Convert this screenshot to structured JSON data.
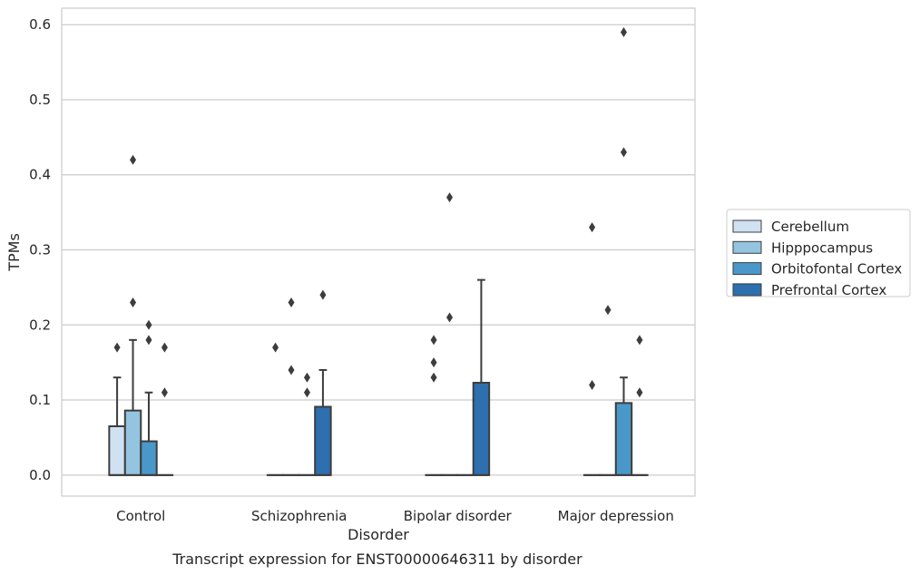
{
  "chart_data": {
    "type": "box",
    "caption": "Transcript expression for ENST00000646311 by disorder",
    "xlabel": "Disorder",
    "ylabel": "TPMs",
    "ylim": [
      -0.028,
      0.622
    ],
    "yticks": [
      0.0,
      0.1,
      0.2,
      0.3,
      0.4,
      0.5,
      0.6
    ],
    "ytick_labels": [
      "0.0",
      "0.1",
      "0.2",
      "0.3",
      "0.4",
      "0.5",
      "0.6"
    ],
    "categories": [
      "Control",
      "Schizophrenia",
      "Bipolar disorder",
      "Major depression"
    ],
    "grid": "horizontal",
    "legend": {
      "position": "right",
      "entries": [
        "Cerebellum",
        "Hipppocampus",
        "Orbitofontal Cortex",
        "Prefrontal Cortex"
      ]
    },
    "colors": [
      "#d0e1f2",
      "#94c4df",
      "#4a98c9",
      "#2d6faf"
    ],
    "series": [
      {
        "name": "Cerebellum",
        "boxes": [
          {
            "q1": 0.0,
            "q3": 0.065,
            "median": 0.0,
            "whisker_low": 0.0,
            "whisker_high": 0.13,
            "outliers": [
              0.17
            ]
          },
          {
            "q1": 0.0,
            "q3": 0.0,
            "median": 0.0,
            "whisker_low": 0.0,
            "whisker_high": 0.0,
            "outliers": [
              0.17
            ]
          },
          {
            "q1": 0.0,
            "q3": 0.0,
            "median": 0.0,
            "whisker_low": 0.0,
            "whisker_high": 0.0,
            "outliers": [
              0.18,
              0.15,
              0.13
            ]
          },
          {
            "q1": 0.0,
            "q3": 0.0,
            "median": 0.0,
            "whisker_low": 0.0,
            "whisker_high": 0.0,
            "outliers": [
              0.33,
              0.12
            ]
          }
        ]
      },
      {
        "name": "Hipppocampus",
        "boxes": [
          {
            "q1": 0.0,
            "q3": 0.086,
            "median": 0.0,
            "whisker_low": 0.0,
            "whisker_high": 0.18,
            "outliers": [
              0.42,
              0.23
            ]
          },
          {
            "q1": 0.0,
            "q3": 0.0,
            "median": 0.0,
            "whisker_low": 0.0,
            "whisker_high": 0.0,
            "outliers": [
              0.23,
              0.14
            ]
          },
          {
            "q1": 0.0,
            "q3": 0.0,
            "median": 0.0,
            "whisker_low": 0.0,
            "whisker_high": 0.0,
            "outliers": [
              0.37,
              0.21
            ]
          },
          {
            "q1": 0.0,
            "q3": 0.0,
            "median": 0.0,
            "whisker_low": 0.0,
            "whisker_high": 0.0,
            "outliers": [
              0.22
            ]
          }
        ]
      },
      {
        "name": "Orbitofontal Cortex",
        "boxes": [
          {
            "q1": 0.0,
            "q3": 0.045,
            "median": 0.0,
            "whisker_low": 0.0,
            "whisker_high": 0.11,
            "outliers": [
              0.2,
              0.18
            ]
          },
          {
            "q1": 0.0,
            "q3": 0.0,
            "median": 0.0,
            "whisker_low": 0.0,
            "whisker_high": 0.0,
            "outliers": [
              0.13,
              0.11
            ]
          },
          {
            "q1": 0.0,
            "q3": 0.0,
            "median": 0.0,
            "whisker_low": 0.0,
            "whisker_high": 0.0,
            "outliers": []
          },
          {
            "q1": 0.0,
            "q3": 0.096,
            "median": 0.0,
            "whisker_low": 0.0,
            "whisker_high": 0.13,
            "outliers": [
              0.59,
              0.43
            ]
          }
        ]
      },
      {
        "name": "Prefrontal Cortex",
        "boxes": [
          {
            "q1": 0.0,
            "q3": 0.0,
            "median": 0.0,
            "whisker_low": 0.0,
            "whisker_high": 0.0,
            "outliers": [
              0.17,
              0.11
            ]
          },
          {
            "q1": 0.0,
            "q3": 0.091,
            "median": 0.0,
            "whisker_low": 0.0,
            "whisker_high": 0.14,
            "outliers": [
              0.24
            ]
          },
          {
            "q1": 0.0,
            "q3": 0.123,
            "median": 0.0,
            "whisker_low": 0.0,
            "whisker_high": 0.26,
            "outliers": []
          },
          {
            "q1": 0.0,
            "q3": 0.0,
            "median": 0.0,
            "whisker_low": 0.0,
            "whisker_high": 0.0,
            "outliers": [
              0.18,
              0.11
            ]
          }
        ]
      }
    ]
  }
}
